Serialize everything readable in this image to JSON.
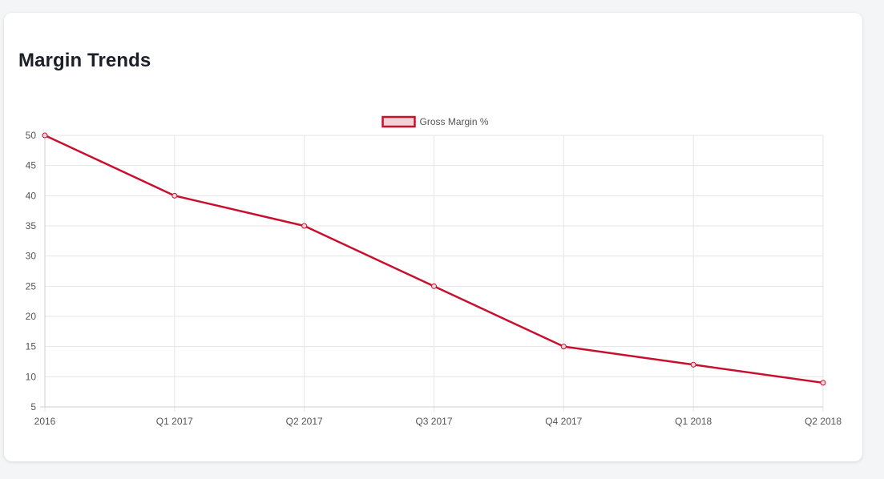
{
  "card": {
    "title": "Margin Trends"
  },
  "chart_data": {
    "type": "line",
    "categories": [
      "2016",
      "Q1 2017",
      "Q2 2017",
      "Q3 2017",
      "Q4 2017",
      "Q1 2018",
      "Q2 2018"
    ],
    "series": [
      {
        "name": "Gross Margin %",
        "values": [
          50,
          40,
          35,
          25,
          15,
          12,
          9
        ],
        "color": "#c8102e",
        "fill": "#f2d3d8"
      }
    ],
    "yticks": [
      5,
      10,
      15,
      20,
      25,
      30,
      35,
      40,
      45,
      50
    ],
    "ylim": [
      5,
      50
    ],
    "grid": true,
    "legend": "top-center",
    "gridColor": "#e5e5e5",
    "axisColor": "#cfcfcf"
  }
}
